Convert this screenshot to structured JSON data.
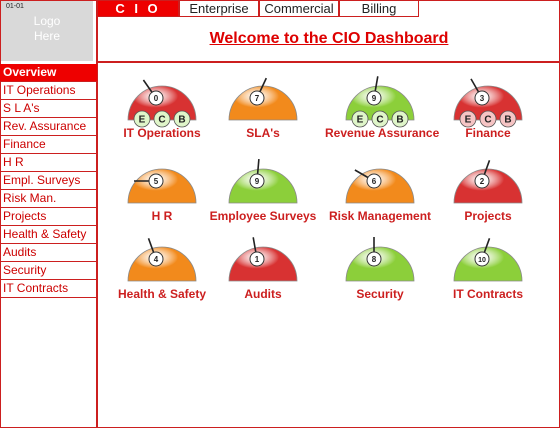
{
  "logo": {
    "id": "01-01",
    "line1": "Logo",
    "line2": "Here"
  },
  "topnav": {
    "tabs": [
      "C I O",
      "Enterprise",
      "Commercial",
      "Billing"
    ]
  },
  "title": "Welcome to the CIO Dashboard",
  "sidebar": {
    "items": [
      "Overview",
      "IT Operations",
      "S L A's",
      "Rev. Assurance",
      "Finance",
      "H R",
      "Empl. Surveys",
      "Risk Man.",
      "Projects",
      "Health & Safety",
      "Audits",
      "Security",
      "IT Contracts"
    ]
  },
  "colors": {
    "red": "#d83232",
    "orange": "#f28a1c",
    "green": "#8ccf3a",
    "accent": "#e00000"
  },
  "status_letters": [
    "E",
    "C",
    "B"
  ],
  "gauges": [
    {
      "label": "IT Operations",
      "value": "0",
      "color": "red",
      "status": [
        "E",
        "C",
        "B"
      ],
      "status_colors": [
        "green",
        "green",
        "green"
      ]
    },
    {
      "label": "SLA's",
      "value": "7",
      "color": "orange"
    },
    {
      "label": "Revenue Assurance",
      "value": "9",
      "color": "green",
      "status": [
        "E",
        "C",
        "B"
      ],
      "status_colors": [
        "green",
        "green",
        "green"
      ]
    },
    {
      "label": "Finance",
      "value": "3",
      "color": "red",
      "status": [
        "E",
        "C",
        "B"
      ],
      "status_colors": [
        "red",
        "red",
        "red"
      ]
    },
    {
      "label": "H R",
      "value": "5",
      "color": "orange"
    },
    {
      "label": "Employee Surveys",
      "value": "9",
      "color": "green"
    },
    {
      "label": "Risk Management",
      "value": "6",
      "color": "orange"
    },
    {
      "label": "Projects",
      "value": "2",
      "color": "red"
    },
    {
      "label": "Health & Safety",
      "value": "4",
      "color": "orange"
    },
    {
      "label": "Audits",
      "value": "1",
      "color": "red"
    },
    {
      "label": "Security",
      "value": "8",
      "color": "green"
    },
    {
      "label": "IT Contracts",
      "value": "10",
      "color": "green"
    }
  ]
}
